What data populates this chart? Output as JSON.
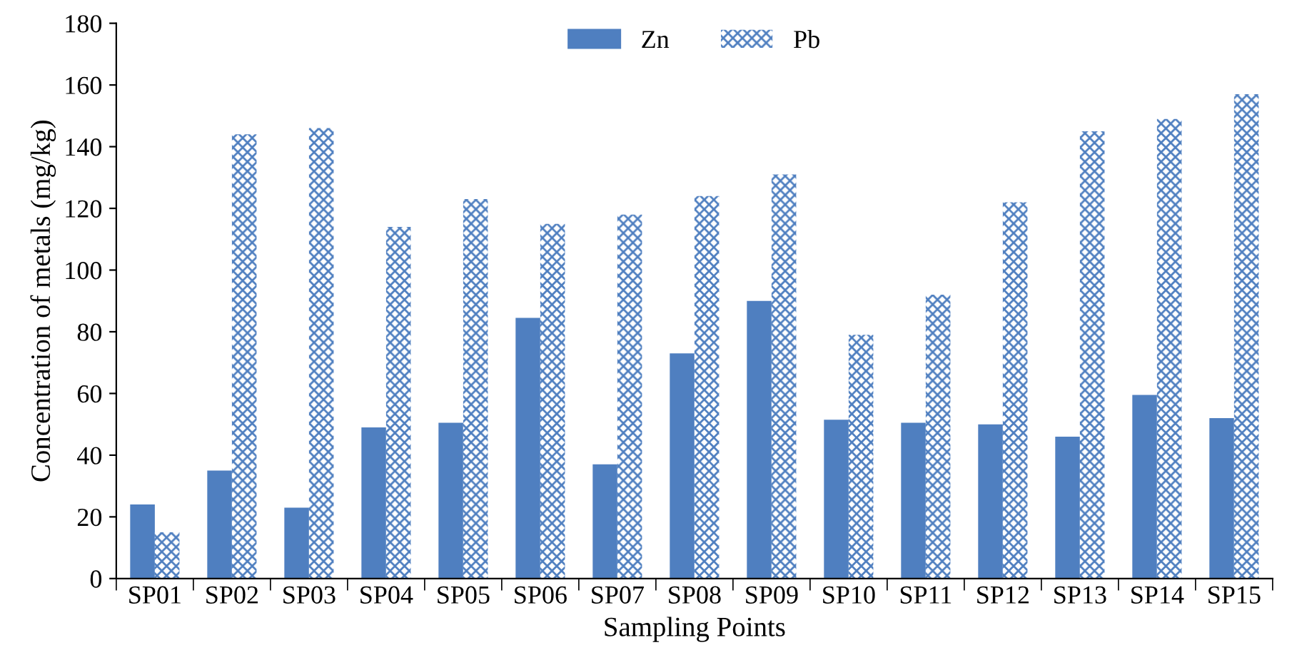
{
  "chart_data": {
    "type": "bar",
    "xlabel": "Sampling Points",
    "ylabel": "Concentration of metals (mg/kg)",
    "categories": [
      "SP01",
      "SP02",
      "SP03",
      "SP04",
      "SP05",
      "SP06",
      "SP07",
      "SP08",
      "SP09",
      "SP10",
      "SP11",
      "SP12",
      "SP13",
      "SP14",
      "SP15"
    ],
    "series": [
      {
        "name": "Zn",
        "color": "#4f7fc0",
        "values": [
          24,
          35,
          23,
          49,
          50.5,
          84.5,
          37,
          73,
          90,
          51.5,
          50.5,
          50,
          46,
          59.5,
          52
        ]
      },
      {
        "name": "Pb",
        "color": "#4f7fc0",
        "values": [
          15,
          144,
          146,
          114,
          123,
          115,
          118,
          124,
          131,
          79,
          92,
          122,
          145,
          149,
          157
        ]
      }
    ],
    "ylim": [
      0,
      180
    ],
    "yticks": [
      0,
      20,
      40,
      60,
      80,
      100,
      120,
      140,
      160,
      180
    ],
    "grid": false,
    "legend": "top"
  }
}
